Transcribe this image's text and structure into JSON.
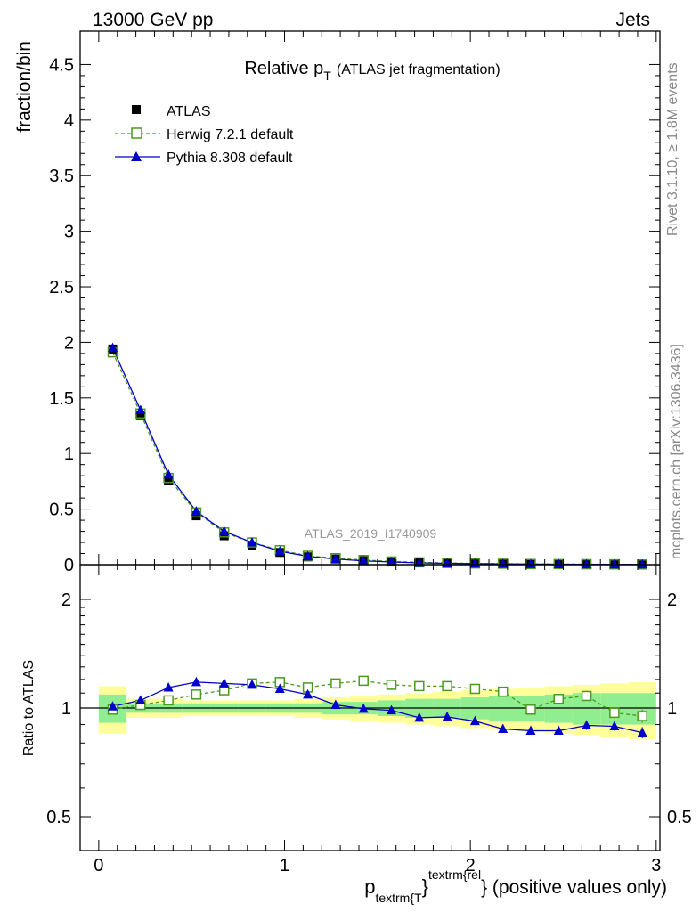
{
  "header": {
    "left": "13000 GeV pp",
    "right": "Jets"
  },
  "side_labels": {
    "rivet": "Rivet 3.1.10, ≥ 1.8M events",
    "mcplots": "mcplots.cern.ch [arXiv:1306.3436]"
  },
  "colors": {
    "atlas": "#000000",
    "herwig": "#4a9a1e",
    "pythia": "#0000cc",
    "band_yellow": "#ffff99",
    "band_green": "#90ee90"
  },
  "chart_data": [
    {
      "type": "line",
      "title_main": "Relative p",
      "title_sub": "T",
      "title_rest": "(ATLAS jet fragmentation)",
      "watermark": "ATLAS_2019_I1740909",
      "ylabel": "fraction/bin",
      "xlim": [
        -0.1,
        3.02
      ],
      "ylim": [
        0,
        4.8
      ],
      "yticks": [
        "0",
        "0.5",
        "1",
        "1.5",
        "2",
        "2.5",
        "3",
        "3.5",
        "4",
        "4.5"
      ],
      "legend": [
        "ATLAS",
        "Herwig 7.2.1 default",
        "Pythia 8.308 default"
      ],
      "x": [
        0.075,
        0.225,
        0.375,
        0.525,
        0.675,
        0.825,
        0.975,
        1.125,
        1.275,
        1.425,
        1.575,
        1.725,
        1.875,
        2.025,
        2.175,
        2.325,
        2.475,
        2.625,
        2.775,
        2.925
      ],
      "series": [
        {
          "name": "ATLAS",
          "values": [
            1.94,
            1.34,
            0.76,
            0.44,
            0.26,
            0.17,
            0.11,
            0.07,
            0.05,
            0.035,
            0.025,
            0.018,
            0.013,
            0.01,
            0.008,
            0.006,
            0.005,
            0.004,
            0.003,
            0.002
          ]
        },
        {
          "name": "Herwig 7.2.1 default",
          "values": [
            1.91,
            1.36,
            0.78,
            0.47,
            0.29,
            0.2,
            0.13,
            0.08,
            0.058,
            0.042,
            0.029,
            0.021,
            0.015,
            0.011,
            0.009,
            0.006,
            0.005,
            0.004,
            0.003,
            0.002
          ]
        },
        {
          "name": "Pythia 8.308 default",
          "values": [
            1.95,
            1.39,
            0.81,
            0.48,
            0.3,
            0.2,
            0.12,
            0.075,
            0.05,
            0.034,
            0.024,
            0.016,
            0.012,
            0.009,
            0.007,
            0.005,
            0.004,
            0.003,
            0.0025,
            0.0017
          ]
        }
      ]
    },
    {
      "type": "line",
      "ylabel": "Ratio to ATLAS",
      "xlabel_main": "p",
      "xlabel_sub": "textrm{T",
      "xlabel_sup": "textrm{rel",
      "xlabel_rest": "} (positive values only)",
      "xticks": [
        "0",
        "1",
        "2",
        "3"
      ],
      "yticks_left": [
        "0.5",
        "1",
        "2"
      ],
      "yticks_right": [
        "0.5",
        "1",
        "2"
      ],
      "ylim": [
        0.4,
        2.3
      ],
      "x": [
        0.075,
        0.225,
        0.375,
        0.525,
        0.675,
        0.825,
        0.975,
        1.125,
        1.275,
        1.425,
        1.575,
        1.725,
        1.875,
        2.025,
        2.175,
        2.325,
        2.475,
        2.625,
        2.775,
        2.925
      ],
      "band_edges": [
        0,
        0.15,
        0.3,
        0.45,
        0.6,
        0.75,
        0.9,
        1.05,
        1.2,
        1.35,
        1.5,
        1.65,
        1.8,
        1.95,
        2.1,
        2.25,
        2.4,
        2.55,
        2.7,
        2.85,
        3.0
      ],
      "band_yellow": [
        0.15,
        0.06,
        0.06,
        0.05,
        0.05,
        0.05,
        0.05,
        0.06,
        0.07,
        0.08,
        0.09,
        0.1,
        0.11,
        0.12,
        0.13,
        0.14,
        0.15,
        0.16,
        0.17,
        0.18
      ],
      "band_green": [
        0.09,
        0.03,
        0.03,
        0.03,
        0.03,
        0.03,
        0.03,
        0.03,
        0.04,
        0.04,
        0.05,
        0.06,
        0.06,
        0.07,
        0.08,
        0.08,
        0.09,
        0.1,
        0.1,
        0.1
      ],
      "series": [
        {
          "name": "Herwig 7.2.1 default",
          "values": [
            0.99,
            1.02,
            1.05,
            1.09,
            1.12,
            1.17,
            1.18,
            1.14,
            1.17,
            1.19,
            1.16,
            1.15,
            1.15,
            1.13,
            1.11,
            0.99,
            1.06,
            1.08,
            0.97,
            0.95
          ],
          "errors": [
            0.01,
            0.01,
            0.01,
            0.01,
            0.01,
            0.01,
            0.01,
            0.01,
            0.01,
            0.01,
            0.01,
            0.01,
            0.01,
            0.01,
            0.01,
            0.02,
            0.02,
            0.03,
            0.03,
            0.04
          ]
        },
        {
          "name": "Pythia 8.308 default",
          "values": [
            1.01,
            1.05,
            1.14,
            1.18,
            1.17,
            1.16,
            1.13,
            1.09,
            1.02,
            0.995,
            0.985,
            0.94,
            0.945,
            0.92,
            0.875,
            0.865,
            0.865,
            0.895,
            0.89,
            0.855
          ],
          "errors": [
            0.01,
            0.01,
            0.01,
            0.01,
            0.01,
            0.01,
            0.01,
            0.01,
            0.01,
            0.01,
            0.01,
            0.01,
            0.01,
            0.01,
            0.015,
            0.02,
            0.02,
            0.025,
            0.025,
            0.03
          ]
        }
      ]
    }
  ]
}
